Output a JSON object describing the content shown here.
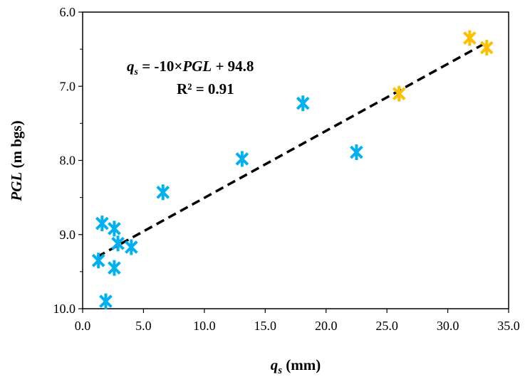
{
  "chart_data": {
    "type": "scatter",
    "title": "",
    "xlabel": {
      "main": "q",
      "sub": "s",
      "rest": " (mm)"
    },
    "ylabel": {
      "main": "PGL",
      "rest": " (m bgs)"
    },
    "xlim": [
      0,
      35
    ],
    "ylim": [
      6,
      10
    ],
    "y_inverted": true,
    "x_ticks": [
      "0.0",
      "5.0",
      "10.0",
      "15.0",
      "20.0",
      "25.0",
      "30.0",
      "35.0"
    ],
    "y_ticks": [
      "6.0",
      "7.0",
      "8.0",
      "9.0",
      "10.0"
    ],
    "grid": false,
    "legend": "none",
    "series": [
      {
        "color": "#00b0f0",
        "marker": "asterisk",
        "points": [
          {
            "x": 1.6,
            "y": 8.85
          },
          {
            "x": 1.3,
            "y": 9.35
          },
          {
            "x": 1.9,
            "y": 9.9
          },
          {
            "x": 2.6,
            "y": 8.92
          },
          {
            "x": 2.9,
            "y": 9.12
          },
          {
            "x": 2.6,
            "y": 9.45
          },
          {
            "x": 4.0,
            "y": 9.17
          },
          {
            "x": 6.6,
            "y": 8.43
          },
          {
            "x": 13.1,
            "y": 7.98
          },
          {
            "x": 18.1,
            "y": 7.23
          },
          {
            "x": 22.5,
            "y": 7.89
          }
        ]
      },
      {
        "color": "#ffc000",
        "marker": "asterisk",
        "points": [
          {
            "x": 26.0,
            "y": 7.1
          },
          {
            "x": 31.8,
            "y": 6.35
          },
          {
            "x": 33.2,
            "y": 6.48
          }
        ]
      }
    ],
    "trendline": {
      "style": "dashed",
      "color": "#000000",
      "x_range": [
        1.2,
        33.3
      ],
      "y_values": [
        9.3,
        6.4
      ]
    },
    "annotation": {
      "equation": {
        "q": "q",
        "sub": "s",
        "mid": " = -10×",
        "pgl": "PGL",
        "tail": " + 94.8"
      },
      "r2": "R² = 0.91"
    }
  }
}
